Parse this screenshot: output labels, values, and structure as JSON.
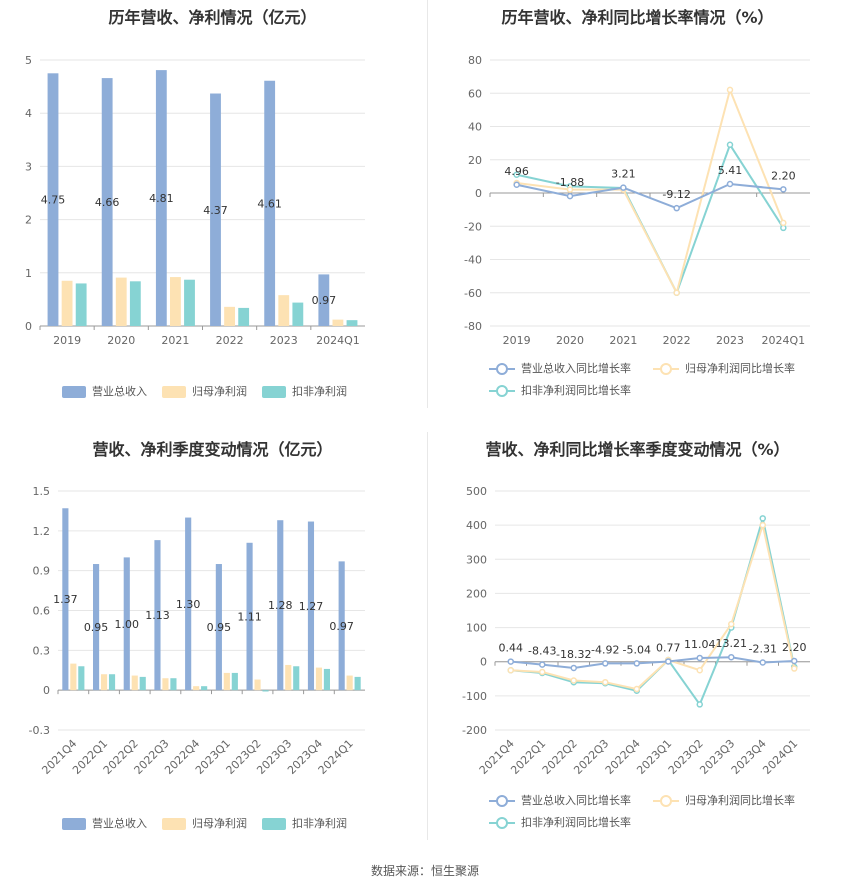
{
  "source": "数据来源：恒生聚源",
  "colors": {
    "revenue_bar": "#8eadd8",
    "netprofit_bar": "#fde2b3",
    "deducted_bar": "#86d3d3",
    "revenue_line": "#8eadd8",
    "netprofit_line": "#fde2b3",
    "deducted_line": "#86d3d3",
    "grid": "#e6e6e6"
  },
  "chart_data": [
    {
      "type": "bar",
      "title": "历年营收、净利情况（亿元）",
      "categories": [
        "2019",
        "2020",
        "2021",
        "2022",
        "2023",
        "2024Q1"
      ],
      "ylim": [
        0,
        5
      ],
      "yticks": [
        0,
        1,
        2,
        3,
        4,
        5
      ],
      "series": [
        {
          "name": "营业总收入",
          "values": [
            4.75,
            4.66,
            4.81,
            4.37,
            4.61,
            0.97
          ],
          "labels": [
            "4.75",
            "4.66",
            "4.81",
            "4.37",
            "4.61",
            "0.97"
          ]
        },
        {
          "name": "归母净利润",
          "values": [
            0.85,
            0.91,
            0.92,
            0.36,
            0.58,
            0.12
          ]
        },
        {
          "name": "扣非净利润",
          "values": [
            0.8,
            0.84,
            0.87,
            0.34,
            0.44,
            0.11
          ]
        }
      ],
      "legend": "bottom"
    },
    {
      "type": "line",
      "title": "历年营收、净利同比增长率情况（%）",
      "categories": [
        "2019",
        "2020",
        "2021",
        "2022",
        "2023",
        "2024Q1"
      ],
      "ylim": [
        -80,
        80
      ],
      "yticks": [
        -80,
        -60,
        -40,
        -20,
        0,
        20,
        40,
        60,
        80
      ],
      "series": [
        {
          "name": "营业总收入同比增长率",
          "values": [
            4.96,
            -1.88,
            3.21,
            -9.12,
            5.41,
            2.2
          ],
          "labels": [
            "4.96",
            "-1.88",
            "3.21",
            "-9.12",
            "5.41",
            "2.20"
          ]
        },
        {
          "name": "归母净利润同比增长率",
          "values": [
            6,
            2,
            2,
            -60,
            62,
            -18
          ]
        },
        {
          "name": "扣非净利润同比增长率",
          "values": [
            11,
            4,
            3,
            -60,
            29,
            -21
          ]
        }
      ],
      "legend": "bottom"
    },
    {
      "type": "bar",
      "title": "营收、净利季度变动情况（亿元）",
      "categories": [
        "2021Q4",
        "2022Q1",
        "2022Q2",
        "2022Q3",
        "2022Q4",
        "2023Q1",
        "2023Q2",
        "2023Q3",
        "2023Q4",
        "2024Q1"
      ],
      "ylim": [
        -0.3,
        1.5
      ],
      "yticks": [
        -0.3,
        0,
        0.3,
        0.6,
        0.9,
        1.2,
        1.5
      ],
      "series": [
        {
          "name": "营业总收入",
          "values": [
            1.37,
            0.95,
            1.0,
            1.13,
            1.3,
            0.95,
            1.11,
            1.28,
            1.27,
            0.97
          ],
          "labels": [
            "1.37",
            "0.95",
            "1.00",
            "1.13",
            "1.30",
            "0.95",
            "1.11",
            "1.28",
            "1.27",
            "0.97"
          ]
        },
        {
          "name": "归母净利润",
          "values": [
            0.2,
            0.12,
            0.11,
            0.09,
            0.03,
            0.13,
            0.08,
            0.19,
            0.17,
            0.11
          ]
        },
        {
          "name": "扣非净利润",
          "values": [
            0.18,
            0.12,
            0.1,
            0.09,
            0.03,
            0.13,
            -0.01,
            0.18,
            0.16,
            0.1
          ]
        }
      ],
      "legend": "bottom"
    },
    {
      "type": "line",
      "title": "营收、净利同比增长率季度变动情况（%）",
      "categories": [
        "2021Q4",
        "2022Q1",
        "2022Q2",
        "2022Q3",
        "2022Q4",
        "2023Q1",
        "2023Q2",
        "2023Q3",
        "2023Q4",
        "2024Q1"
      ],
      "ylim": [
        -200,
        500
      ],
      "yticks": [
        -200,
        -100,
        0,
        100,
        200,
        300,
        400,
        500
      ],
      "series": [
        {
          "name": "营业总收入同比增长率",
          "values": [
            0.44,
            -8.43,
            -18.32,
            -4.92,
            -5.04,
            0.77,
            11.04,
            13.21,
            -2.31,
            2.2
          ],
          "labels": [
            "0.44",
            "-8.43",
            "-18.32",
            "-4.92",
            "-5.04",
            "0.77",
            "11.04",
            "13.21",
            "-2.31",
            "2.20"
          ]
        },
        {
          "name": "归母净利润同比增长率",
          "values": [
            -25,
            -30,
            -55,
            -60,
            -80,
            5,
            -25,
            110,
            400,
            -20
          ]
        },
        {
          "name": "扣非净利润同比增长率",
          "values": [
            -25,
            -33,
            -60,
            -63,
            -85,
            5,
            -125,
            100,
            420,
            -15
          ]
        }
      ],
      "legend": "bottom"
    }
  ]
}
